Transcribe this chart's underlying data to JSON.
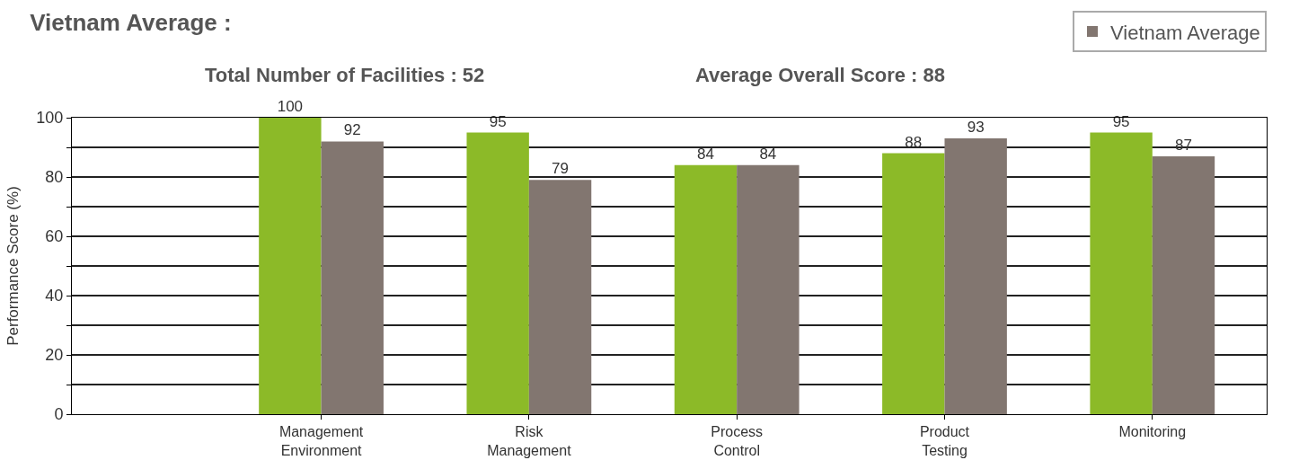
{
  "chart_data": {
    "type": "bar",
    "title": "Vietnam Average :",
    "annotations": [
      "Total Number of Facilities : 52",
      "Average Overall Score : 88"
    ],
    "ylabel": "Performance Score (%)",
    "categories": [
      "Management\nEnvironment",
      "Risk\nManagement",
      "Process\nControl",
      "Product\nTesting",
      "Monitoring"
    ],
    "series": [
      {
        "color": "#8cba28",
        "values": [
          100,
          95,
          84,
          88,
          95
        ]
      },
      {
        "name": "Vietnam Average",
        "color": "#827670",
        "values": [
          92,
          79,
          84,
          93,
          87
        ]
      }
    ],
    "ylim": [
      0,
      100
    ],
    "yticks": [
      0,
      {
        "value": 10,
        "label": null
      },
      20,
      {
        "value": 30,
        "label": null
      },
      40,
      {
        "value": 50,
        "label": null
      },
      60,
      {
        "value": 70,
        "label": null
      },
      80,
      {
        "value": 90,
        "label": null
      },
      100
    ],
    "data_labels": true,
    "grid": "y",
    "legend": "top right"
  }
}
